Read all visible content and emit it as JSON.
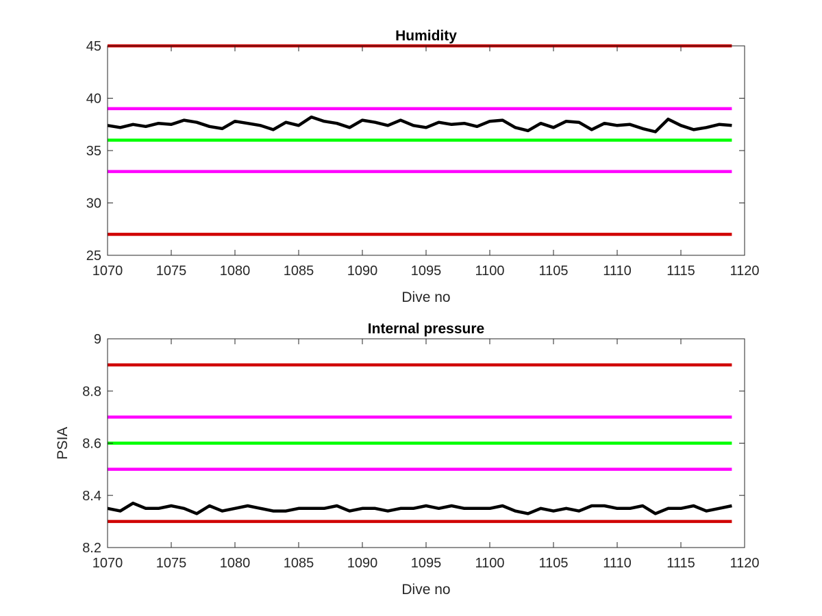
{
  "chart_data": [
    {
      "type": "line",
      "title": "Humidity",
      "xlabel": "Dive no",
      "ylabel": "",
      "xlim": [
        1070,
        1120
      ],
      "ylim": [
        25,
        45
      ],
      "xticks": [
        1070,
        1075,
        1080,
        1085,
        1090,
        1095,
        1100,
        1105,
        1110,
        1115,
        1120
      ],
      "yticks": [
        25,
        30,
        35,
        40,
        45
      ],
      "grid": false,
      "legend": "none",
      "x": [
        1070,
        1071,
        1072,
        1073,
        1074,
        1075,
        1076,
        1077,
        1078,
        1079,
        1080,
        1081,
        1082,
        1083,
        1084,
        1085,
        1086,
        1087,
        1088,
        1089,
        1090,
        1091,
        1092,
        1093,
        1094,
        1095,
        1096,
        1097,
        1098,
        1099,
        1100,
        1101,
        1102,
        1103,
        1104,
        1105,
        1106,
        1107,
        1108,
        1109,
        1110,
        1111,
        1112,
        1113,
        1114,
        1115,
        1116,
        1117,
        1118,
        1119
      ],
      "series": [
        {
          "values": [
            37.4,
            37.2,
            37.5,
            37.3,
            37.6,
            37.5,
            37.9,
            37.7,
            37.3,
            37.1,
            37.8,
            37.6,
            37.4,
            37.0,
            37.7,
            37.4,
            38.2,
            37.8,
            37.6,
            37.2,
            37.9,
            37.7,
            37.4,
            37.9,
            37.4,
            37.2,
            37.7,
            37.5,
            37.6,
            37.3,
            37.8,
            37.9,
            37.2,
            36.9,
            37.6,
            37.2,
            37.8,
            37.7,
            37.0,
            37.6,
            37.4,
            37.5,
            37.1,
            36.8,
            38.0,
            37.4,
            37.0,
            37.2,
            37.5,
            37.4
          ],
          "color": "#000000"
        }
      ],
      "reference_lines": [
        {
          "y": 45,
          "color": "#d00000"
        },
        {
          "y": 39,
          "color": "#ff00ff"
        },
        {
          "y": 36,
          "color": "#00ff00"
        },
        {
          "y": 33,
          "color": "#ff00ff"
        },
        {
          "y": 27,
          "color": "#d00000"
        }
      ]
    },
    {
      "type": "line",
      "title": "Internal pressure",
      "xlabel": "Dive no",
      "ylabel": "PSIA",
      "xlim": [
        1070,
        1120
      ],
      "ylim": [
        8.2,
        9
      ],
      "xticks": [
        1070,
        1075,
        1080,
        1085,
        1090,
        1095,
        1100,
        1105,
        1110,
        1115,
        1120
      ],
      "yticks": [
        8.2,
        8.4,
        8.6,
        8.8,
        9
      ],
      "grid": false,
      "legend": "none",
      "x": [
        1070,
        1071,
        1072,
        1073,
        1074,
        1075,
        1076,
        1077,
        1078,
        1079,
        1080,
        1081,
        1082,
        1083,
        1084,
        1085,
        1086,
        1087,
        1088,
        1089,
        1090,
        1091,
        1092,
        1093,
        1094,
        1095,
        1096,
        1097,
        1098,
        1099,
        1100,
        1101,
        1102,
        1103,
        1104,
        1105,
        1106,
        1107,
        1108,
        1109,
        1110,
        1111,
        1112,
        1113,
        1114,
        1115,
        1116,
        1117,
        1118,
        1119
      ],
      "series": [
        {
          "values": [
            8.35,
            8.34,
            8.37,
            8.35,
            8.35,
            8.36,
            8.35,
            8.33,
            8.36,
            8.34,
            8.35,
            8.36,
            8.35,
            8.34,
            8.34,
            8.35,
            8.35,
            8.35,
            8.36,
            8.34,
            8.35,
            8.35,
            8.34,
            8.35,
            8.35,
            8.36,
            8.35,
            8.36,
            8.35,
            8.35,
            8.35,
            8.36,
            8.34,
            8.33,
            8.35,
            8.34,
            8.35,
            8.34,
            8.36,
            8.36,
            8.35,
            8.35,
            8.36,
            8.33,
            8.35,
            8.35,
            8.36,
            8.34,
            8.35,
            8.36
          ],
          "color": "#000000"
        }
      ],
      "reference_lines": [
        {
          "y": 8.9,
          "color": "#d00000"
        },
        {
          "y": 8.7,
          "color": "#ff00ff"
        },
        {
          "y": 8.6,
          "color": "#00ff00"
        },
        {
          "y": 8.5,
          "color": "#ff00ff"
        },
        {
          "y": 8.3,
          "color": "#d00000"
        }
      ]
    }
  ]
}
